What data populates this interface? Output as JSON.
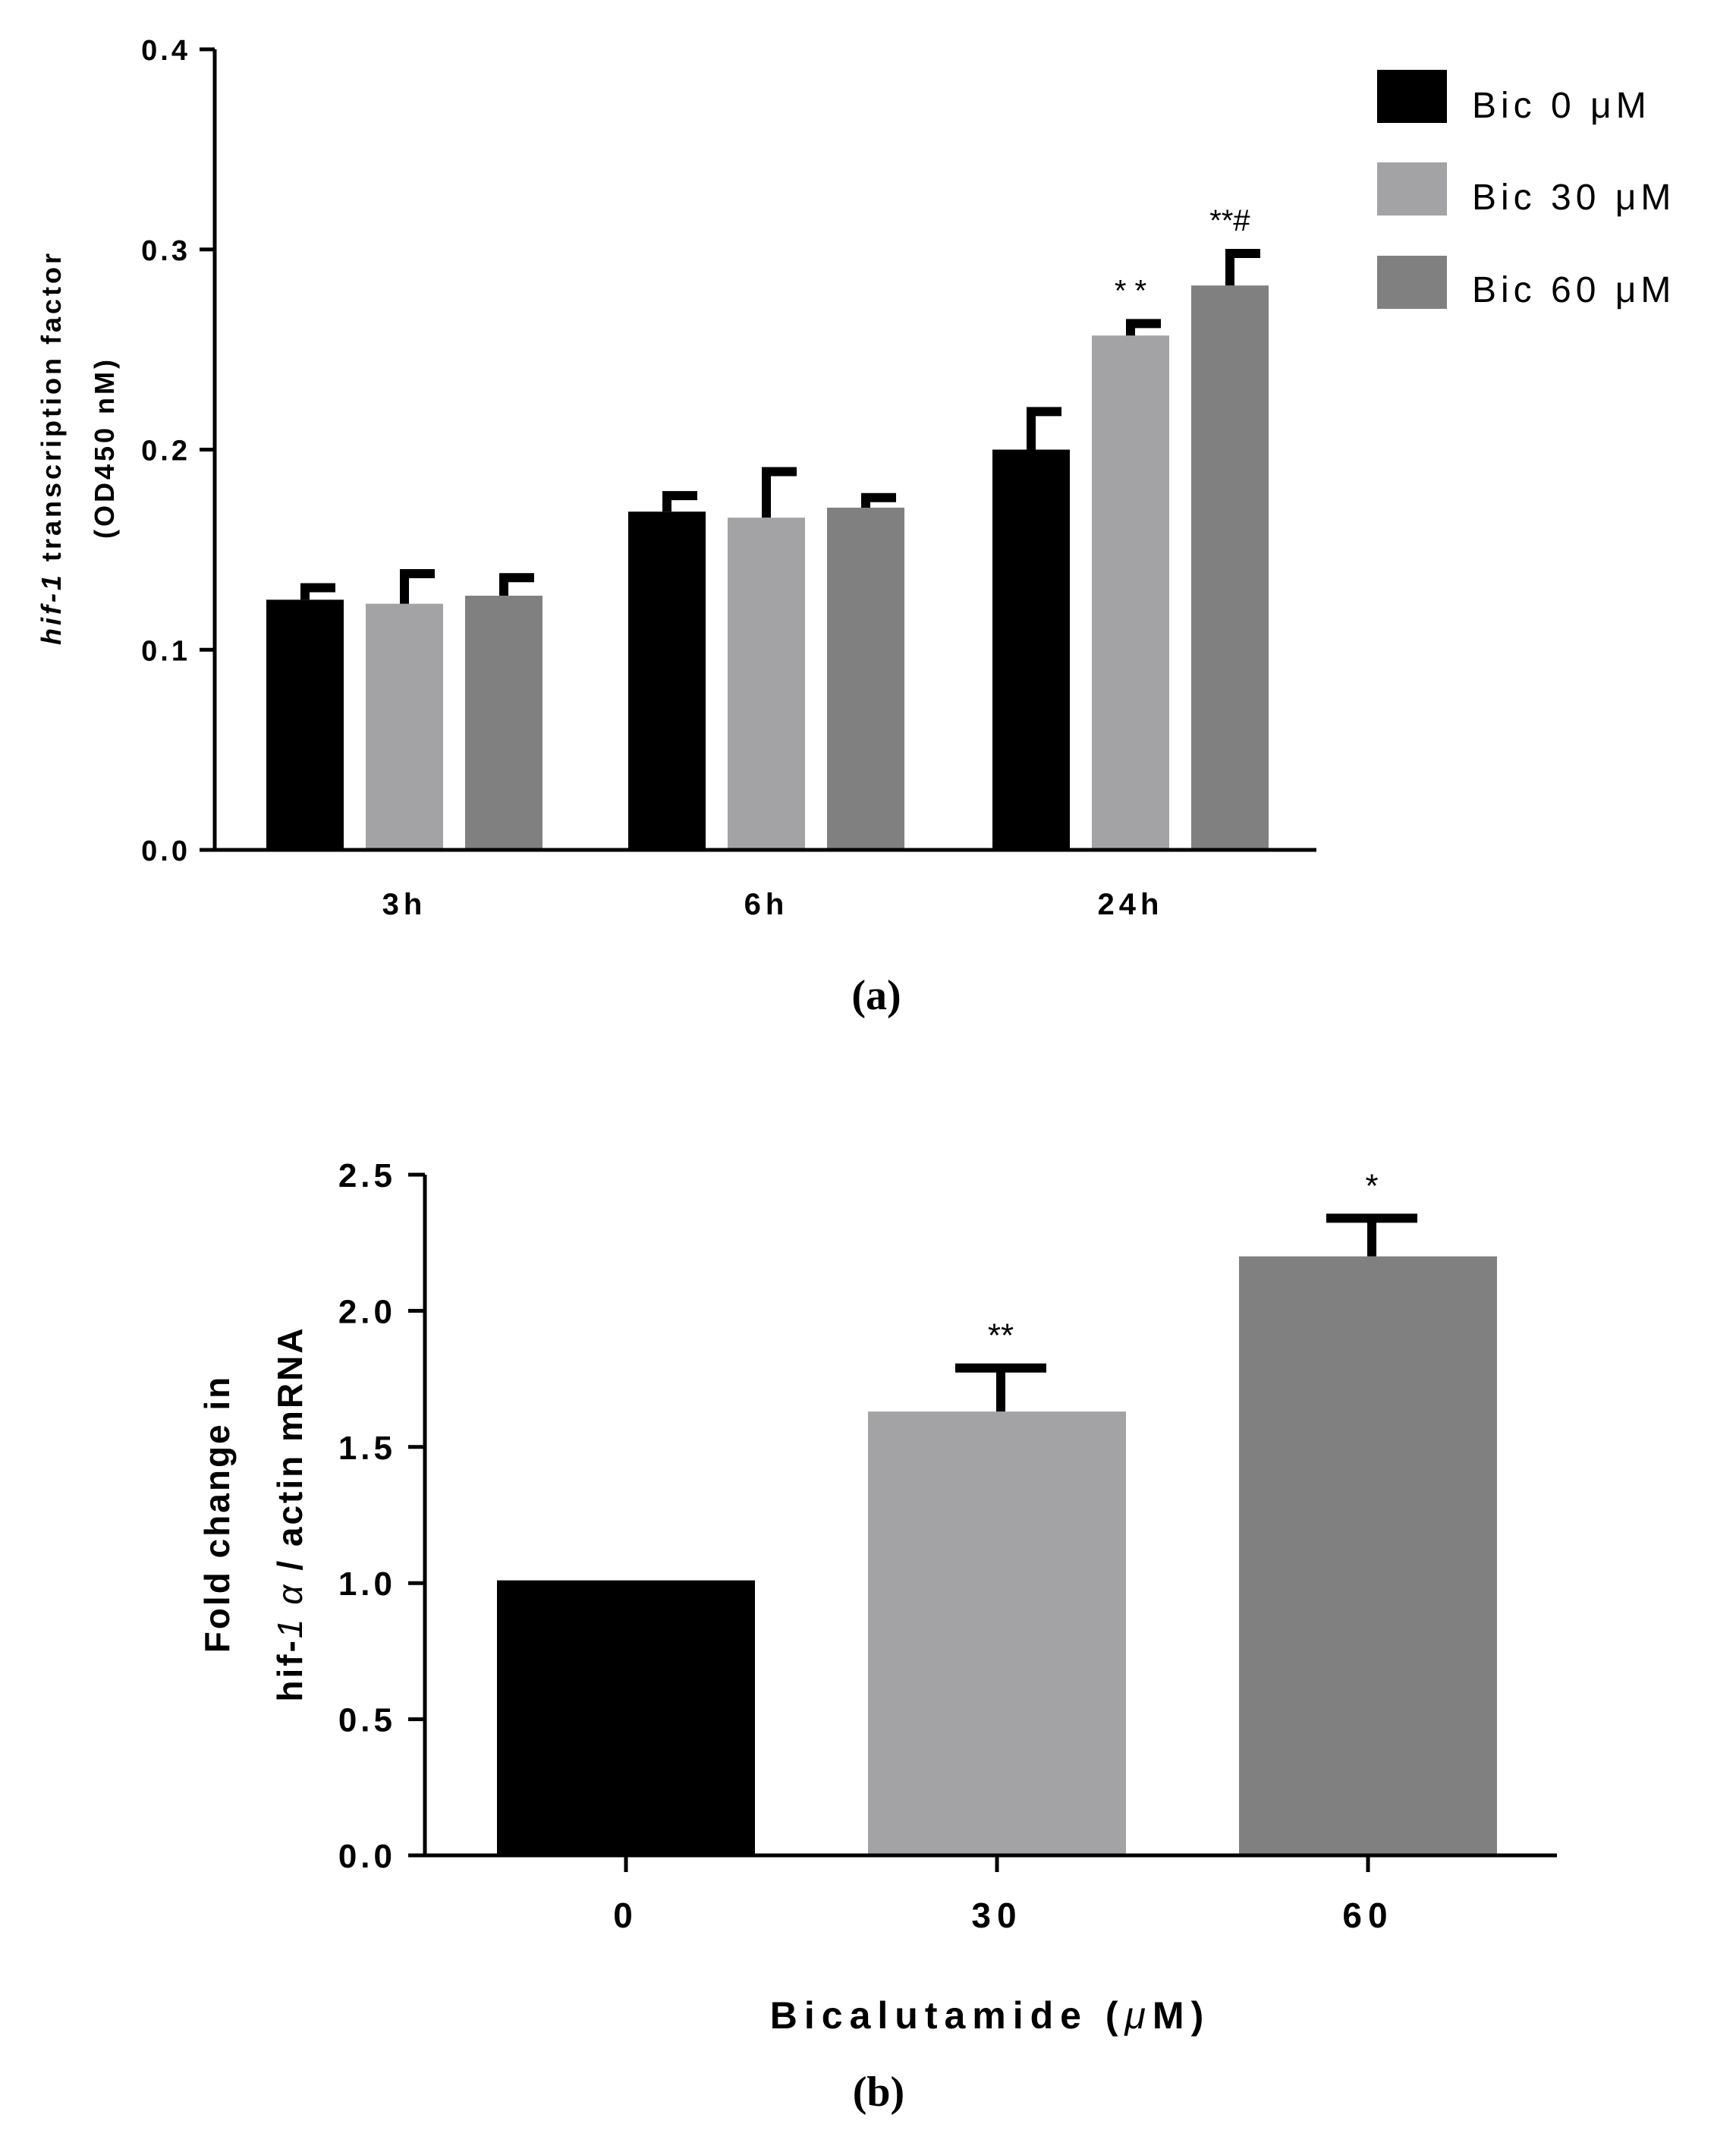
{
  "colors": {
    "bic0": "#000000",
    "bic30": "#a3a3a6",
    "bic60": "#808080",
    "axis": "#000000"
  },
  "chart_data": [
    {
      "type": "bar",
      "panel_label": "(a)",
      "ylabel_italic": "hif-1",
      "ylabel_rest": " transcription factor",
      "ylabel_line2": "(OD450 nM)",
      "xlabel": "",
      "categories": [
        "3h",
        "6h",
        "24h"
      ],
      "ylim": [
        0,
        0.4
      ],
      "yticks": [
        "0.0",
        "0.1",
        "0.2",
        "0.3",
        "0.4"
      ],
      "legend": [
        "Bic 0 μM",
        "Bic 30 μM",
        "Bic 60 μM"
      ],
      "legend_position": "top-right",
      "series": [
        {
          "name": "Bic 0 μM",
          "color": "#000000",
          "values": [
            0.125,
            0.169,
            0.2
          ],
          "errors": [
            0.006,
            0.008,
            0.019
          ],
          "sig": [
            "",
            "",
            ""
          ]
        },
        {
          "name": "Bic 30 μM",
          "color": "#a3a3a6",
          "values": [
            0.123,
            0.166,
            0.257
          ],
          "errors": [
            0.015,
            0.023,
            0.006
          ],
          "sig": [
            "",
            "",
            "* *"
          ]
        },
        {
          "name": "Bic 60 μM",
          "color": "#808080",
          "values": [
            0.127,
            0.171,
            0.282
          ],
          "errors": [
            0.009,
            0.005,
            0.016
          ],
          "sig": [
            "",
            "",
            "**#"
          ]
        }
      ]
    },
    {
      "type": "bar",
      "panel_label": "(b)",
      "ylabel_line1": "Fold change in",
      "ylabel_line2_pre": "hif-",
      "ylabel_line2_italic": "1 α",
      "ylabel_line2_post": " / actin mRNA",
      "xlabel_pre": "Bicalutamide (",
      "xlabel_mu": "μ",
      "xlabel_post": "M)",
      "categories": [
        "0",
        "30",
        "60"
      ],
      "ylim": [
        0,
        2.5
      ],
      "yticks": [
        "0.0",
        "0.5",
        "1.0",
        "1.5",
        "2.0",
        "2.5"
      ],
      "values": [
        1.01,
        1.63,
        2.2
      ],
      "errors": [
        0,
        0.16,
        0.14
      ],
      "colors": [
        "#000000",
        "#a3a3a6",
        "#808080"
      ],
      "sig": [
        "",
        "**",
        "*"
      ]
    }
  ]
}
